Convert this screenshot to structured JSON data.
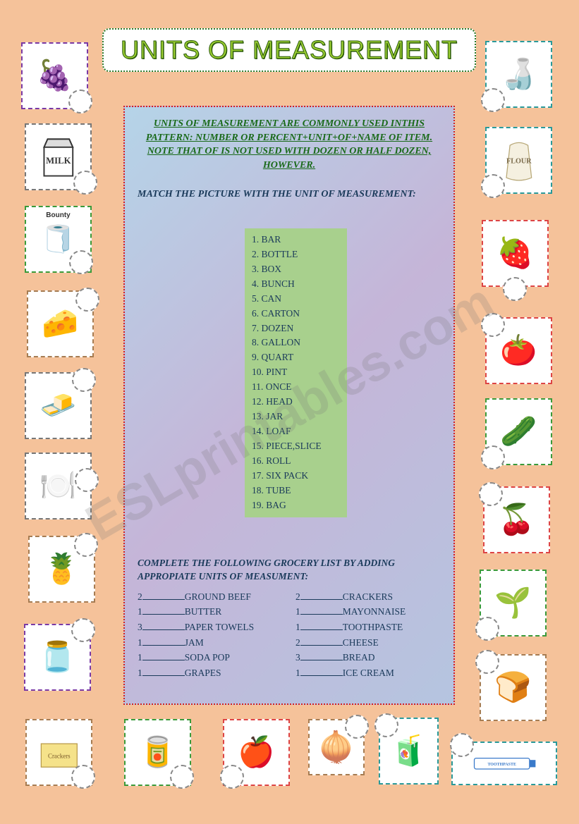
{
  "title": "UNITS OF MEASUREMENT",
  "watermark": "ESLprintables.com",
  "intro": "UNITS OF MEASUREMENT ARE COMMONLY USED INTHIS PATTERN: NUMBER OR PERCENT+UNIT+OF+NAME OF ITEM. NOTE THAT OF IS NOT USED WITH DOZEN OR HALF DOZEN, HOWEVER.",
  "match_instruction": "MATCH THE PICTURE WITH THE UNIT OF MEASUREMENT:",
  "units": [
    "BAR",
    "BOTTLE",
    "BOX",
    "BUNCH",
    "CAN",
    "CARTON",
    "DOZEN",
    "GALLON",
    "QUART",
    "PINT",
    "ONCE",
    "HEAD",
    "JAR",
    "LOAF",
    "PIECE,SLICE",
    "ROLL",
    "SIX PACK",
    "TUBE",
    "BAG"
  ],
  "grocery_instruction": "COMPLETE THE FOLLOWING GROCERY LIST BY ADDING APPROPIATE UNITS OF MEASUMENT:",
  "grocery_left": [
    {
      "qty": "2",
      "item": "GROUND BEEF"
    },
    {
      "qty": "1",
      "item": "BUTTER"
    },
    {
      "qty": "3",
      "item": "PAPER TOWELS"
    },
    {
      "qty": "1",
      "item": "JAM"
    },
    {
      "qty": "1",
      "item": "SODA POP"
    },
    {
      "qty": "1",
      "item": "GRAPES"
    }
  ],
  "grocery_right": [
    {
      "qty": "2",
      "item": "CRACKERS"
    },
    {
      "qty": "1",
      "item": "MAYONNAISE"
    },
    {
      "qty": "1",
      "item": "TOOTHPASTE"
    },
    {
      "qty": "2",
      "item": "CHEESE"
    },
    {
      "qty": "3",
      "item": "BREAD"
    },
    {
      "qty": "1",
      "item": "ICE CREAM"
    }
  ],
  "pictures": {
    "grapes": "🍇",
    "milk": "MILK",
    "towels": "🧻",
    "cheese": "🧀",
    "butter": "🧈",
    "tray": "🍽️",
    "pineapple": "🍍",
    "jam": "🫙",
    "crackers": "Crackers",
    "cans": "🥫",
    "apple": "🍎",
    "onion": "🧅",
    "juice": "🧃",
    "toothpaste": "TOOTHPASTE",
    "bread": "🍞",
    "radish": "🌱",
    "cherry": "🍒",
    "cucumber": "🥒",
    "tomato": "🍅",
    "strawberry": "🍓",
    "flour": "FLOUR",
    "bottle": "🍶"
  },
  "colors": {
    "page_bg": "#f5c29a",
    "panel_border": "#d42020",
    "title_fill": "#9acd32",
    "title_stroke": "#2a5a0a",
    "intro_text": "#1a6a1a",
    "units_bg": "#a8d08d"
  }
}
